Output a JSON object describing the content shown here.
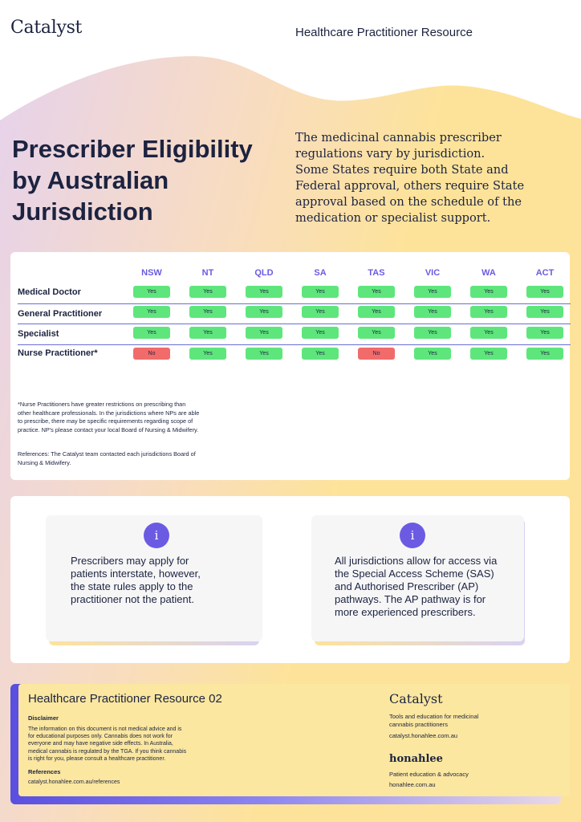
{
  "header": {
    "logo": "Catalyst",
    "resource_label": "Healthcare Practitioner Resource"
  },
  "hero": {
    "title_lines": [
      "Prescriber Eligibility",
      "by Australian",
      "Jurisdiction"
    ],
    "intro_lines": [
      "The medicinal cannabis prescriber",
      "regulations vary by jurisdiction.",
      "Some States require both State and",
      "Federal  approval, others require State",
      "approval based on the schedule of the",
      "medication or specialist support."
    ]
  },
  "table": {
    "columns": [
      "NSW",
      "NT",
      "QLD",
      "SA",
      "TAS",
      "VIC",
      "WA",
      "ACT"
    ],
    "rows": [
      {
        "label": "Medical Doctor",
        "values": [
          "Yes",
          "Yes",
          "Yes",
          "Yes",
          "Yes",
          "Yes",
          "Yes",
          "Yes"
        ]
      },
      {
        "label": "General Practitioner",
        "values": [
          "Yes",
          "Yes",
          "Yes",
          "Yes",
          "Yes",
          "Yes",
          "Yes",
          "Yes"
        ]
      },
      {
        "label": "Specialist",
        "values": [
          "Yes",
          "Yes",
          "Yes",
          "Yes",
          "Yes",
          "Yes",
          "Yes",
          "Yes"
        ]
      },
      {
        "label": "Nurse Practitioner*",
        "values": [
          "No",
          "Yes",
          "Yes",
          "Yes",
          "No",
          "Yes",
          "Yes",
          "Yes"
        ]
      }
    ],
    "footnote_lines": [
      "*Nurse Practitioners have greater restrictions on prescribing than",
      "other healthcare professionals. In the jurisdictions where NPs are able",
      "to prescribe, there may be specific requirements regarding scope of",
      "practice. NP's please contact your local Board of Nursing & Midwifery."
    ],
    "references_lines": [
      "References: The Catalyst team contacted each jurisdictions Board of",
      "Nursing & Midwifery."
    ]
  },
  "info_cards": [
    {
      "icon": "i",
      "lines": [
        "Prescribers may apply for",
        "patients interstate, however,",
        "the state rules apply to the",
        "practitioner not the patient."
      ]
    },
    {
      "icon": "i",
      "lines": [
        "All jurisdictions allow for access via",
        "the Special Access Scheme (SAS)",
        "and Authorised Prescriber (AP)",
        "pathways. The AP pathway is for",
        "more experienced prescribers."
      ]
    }
  ],
  "footer": {
    "title": "Healthcare Practitioner Resource 02",
    "disclaimer_heading": "Disclaimer",
    "disclaimer_lines": [
      "The information on this document is not medical advice and is",
      "for educational purposes only. Cannabis does not work for",
      "everyone and may have negative side effects. In Australia,",
      "medical cannabis is regulated by the TGA. If you think cannabis",
      "is right for you, please consult a healthcare practitioner."
    ],
    "references_heading": "References",
    "references_link": "catalyst.honahlee.com.au/references",
    "brand_catalyst": "Catalyst",
    "catalyst_tagline_lines": [
      "Tools and education for medicinal",
      "cannabis practitioners"
    ],
    "catalyst_url": "catalyst.honahlee.com.au",
    "brand_honahlee": "honahlee",
    "honahlee_tagline": "Patient education & advocacy",
    "honahlee_url": "honahlee.com.au"
  },
  "colors": {
    "accent_purple": "#6b5be3",
    "yes_green": "#5ee67c",
    "no_red": "#f26b6b",
    "navy_text": "#1c2340",
    "wave_yellow": "#fde39a",
    "wave_lilac": "#e7d3ec"
  }
}
